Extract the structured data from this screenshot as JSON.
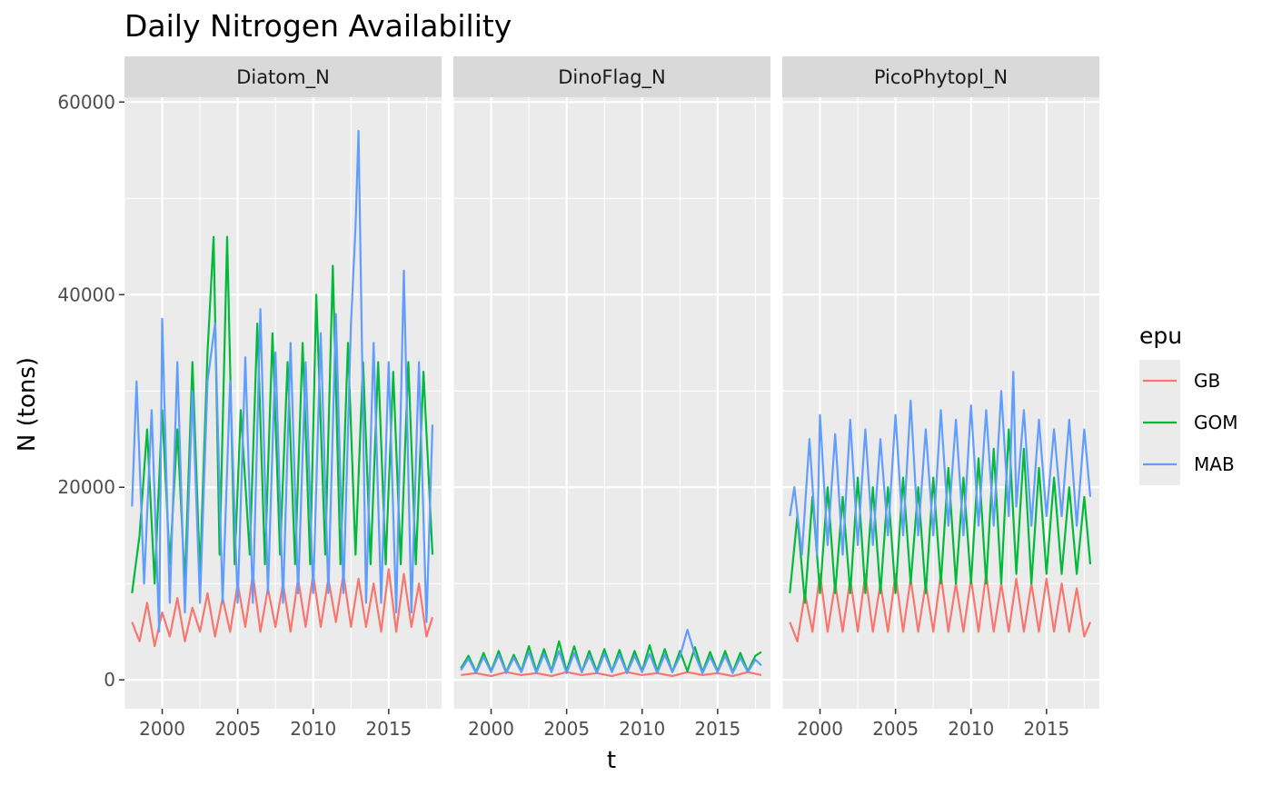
{
  "chart_data": {
    "type": "line",
    "title": "Daily Nitrogen Availability",
    "xlabel": "t",
    "ylabel": "N (tons)",
    "x_ticks": [
      2000,
      2005,
      2010,
      2015
    ],
    "y_ticks": [
      0,
      20000,
      40000,
      60000
    ],
    "xlim": [
      1997.5,
      2018.5
    ],
    "ylim": [
      -3000,
      60500
    ],
    "legend_title": "epu",
    "legend_position": "right",
    "grid": true,
    "panels": [
      {
        "name": "Diatom_N",
        "series": [
          {
            "name": "GB",
            "color": "#F8766D",
            "x": [
              1998.0,
              1998.5,
              1999.0,
              1999.5,
              2000.0,
              2000.5,
              2001.0,
              2001.5,
              2002.0,
              2002.5,
              2003.0,
              2003.5,
              2004.0,
              2004.5,
              2005.0,
              2005.5,
              2006.0,
              2006.5,
              2007.0,
              2007.5,
              2008.0,
              2008.5,
              2009.0,
              2009.5,
              2010.0,
              2010.5,
              2011.0,
              2011.5,
              2012.0,
              2012.5,
              2013.0,
              2013.5,
              2014.0,
              2014.5,
              2015.0,
              2015.5,
              2016.0,
              2016.5,
              2017.0,
              2017.5,
              2017.9
            ],
            "y": [
              6000,
              4000,
              8000,
              3500,
              7000,
              4500,
              8500,
              4000,
              7500,
              5000,
              9000,
              4500,
              8500,
              5000,
              10000,
              5500,
              11000,
              5000,
              9500,
              5500,
              10000,
              5000,
              10500,
              5500,
              11000,
              5500,
              10500,
              6000,
              11000,
              5500,
              10500,
              5500,
              10000,
              5000,
              11500,
              5000,
              11000,
              5500,
              10000,
              4500,
              6500
            ]
          },
          {
            "name": "GOM",
            "color": "#00BA38",
            "x": [
              1998.0,
              1998.5,
              1999.0,
              1999.5,
              2000.0,
              2000.5,
              2001.0,
              2001.5,
              2002.0,
              2002.5,
              2003.0,
              2003.4,
              2003.8,
              2004.3,
              2004.8,
              2005.2,
              2005.8,
              2006.3,
              2006.8,
              2007.3,
              2007.8,
              2008.3,
              2008.8,
              2009.3,
              2009.8,
              2010.2,
              2010.8,
              2011.3,
              2011.8,
              2012.3,
              2012.8,
              2013.3,
              2013.8,
              2014.3,
              2014.8,
              2015.3,
              2015.8,
              2016.3,
              2016.8,
              2017.3,
              2017.9
            ],
            "y": [
              9000,
              15000,
              26000,
              10000,
              28000,
              12000,
              26000,
              10000,
              33000,
              11000,
              34000,
              46000,
              13000,
              46000,
              12000,
              28000,
              13000,
              37000,
              12000,
              36000,
              13000,
              33000,
              12000,
              35000,
              12000,
              40000,
              13000,
              43000,
              12000,
              35000,
              13000,
              33000,
              12000,
              33000,
              12000,
              32000,
              12000,
              33000,
              12000,
              32000,
              13000
            ]
          },
          {
            "name": "MAB",
            "color": "#619CFF",
            "x": [
              1998.0,
              1998.3,
              1998.8,
              1999.3,
              1999.8,
              2000.0,
              2000.5,
              2001.0,
              2001.5,
              2002.0,
              2002.5,
              2003.0,
              2003.5,
              2004.0,
              2004.5,
              2005.0,
              2005.5,
              2006.0,
              2006.5,
              2007.0,
              2007.5,
              2008.0,
              2008.5,
              2009.0,
              2009.5,
              2010.0,
              2010.5,
              2011.0,
              2011.5,
              2012.0,
              2012.5,
              2012.8,
              2013.0,
              2013.5,
              2014.0,
              2014.5,
              2015.0,
              2015.5,
              2016.0,
              2016.5,
              2017.0,
              2017.5,
              2017.9
            ],
            "y": [
              18000,
              31000,
              10000,
              28000,
              5000,
              37500,
              8000,
              33000,
              7000,
              30000,
              8000,
              31000,
              37000,
              8000,
              31000,
              8000,
              33500,
              8000,
              38500,
              9000,
              34000,
              8000,
              35000,
              9000,
              33000,
              9000,
              36000,
              9000,
              38000,
              9000,
              37000,
              47000,
              57000,
              8000,
              35000,
              8000,
              33000,
              7000,
              42500,
              7000,
              33000,
              6000,
              26500
            ]
          }
        ]
      },
      {
        "name": "DinoFlag_N",
        "series": [
          {
            "name": "GB",
            "color": "#F8766D",
            "x": [
              1998.0,
              1999.0,
              2000.0,
              2001.0,
              2002.0,
              2003.0,
              2004.0,
              2005.0,
              2006.0,
              2007.0,
              2008.0,
              2009.0,
              2010.0,
              2011.0,
              2012.0,
              2013.0,
              2014.0,
              2015.0,
              2016.0,
              2017.0,
              2017.9
            ],
            "y": [
              500,
              700,
              400,
              800,
              500,
              700,
              400,
              800,
              500,
              700,
              400,
              800,
              500,
              700,
              400,
              800,
              500,
              700,
              400,
              800,
              500
            ]
          },
          {
            "name": "GOM",
            "color": "#00BA38",
            "x": [
              1998.0,
              1998.5,
              1999.0,
              1999.5,
              2000.0,
              2000.5,
              2001.0,
              2001.5,
              2002.0,
              2002.5,
              2003.0,
              2003.5,
              2004.0,
              2004.5,
              2005.0,
              2005.5,
              2006.0,
              2006.5,
              2007.0,
              2007.5,
              2008.0,
              2008.5,
              2009.0,
              2009.5,
              2010.0,
              2010.5,
              2011.0,
              2011.5,
              2012.0,
              2012.5,
              2013.0,
              2013.5,
              2014.0,
              2014.5,
              2015.0,
              2015.5,
              2016.0,
              2016.5,
              2017.0,
              2017.5,
              2017.9
            ],
            "y": [
              1200,
              2500,
              800,
              2800,
              900,
              3000,
              800,
              2600,
              900,
              3500,
              900,
              3200,
              900,
              4000,
              900,
              3500,
              800,
              3000,
              900,
              3200,
              900,
              3100,
              800,
              3000,
              900,
              3600,
              900,
              3200,
              800,
              3000,
              900,
              3400,
              800,
              2900,
              900,
              3000,
              800,
              2800,
              900,
              2500,
              2900
            ]
          },
          {
            "name": "MAB",
            "color": "#619CFF",
            "x": [
              1998.0,
              1998.5,
              1999.0,
              1999.5,
              2000.0,
              2000.5,
              2001.0,
              2001.5,
              2002.0,
              2002.5,
              2003.0,
              2003.5,
              2004.0,
              2004.5,
              2005.0,
              2005.5,
              2006.0,
              2006.5,
              2007.0,
              2007.5,
              2008.0,
              2008.5,
              2009.0,
              2009.5,
              2010.0,
              2010.5,
              2011.0,
              2011.5,
              2012.0,
              2012.5,
              2013.0,
              2013.5,
              2014.0,
              2014.5,
              2015.0,
              2015.5,
              2016.0,
              2016.5,
              2017.0,
              2017.5,
              2017.9
            ],
            "y": [
              1000,
              2200,
              700,
              2400,
              800,
              2600,
              700,
              2300,
              800,
              2900,
              700,
              2700,
              800,
              3000,
              700,
              2800,
              800,
              2500,
              700,
              2700,
              800,
              2600,
              700,
              2500,
              800,
              2700,
              700,
              2600,
              800,
              2400,
              5200,
              2600,
              700,
              2400,
              800,
              2500,
              700,
              2300,
              800,
              2100,
              1500
            ]
          }
        ]
      },
      {
        "name": "PicoPhytopl_N",
        "series": [
          {
            "name": "GB",
            "color": "#F8766D",
            "x": [
              1998.0,
              1998.5,
              1999.0,
              1999.5,
              2000.0,
              2000.5,
              2001.0,
              2001.5,
              2002.0,
              2002.5,
              2003.0,
              2003.5,
              2004.0,
              2004.5,
              2005.0,
              2005.5,
              2006.0,
              2006.5,
              2007.0,
              2007.5,
              2008.0,
              2008.5,
              2009.0,
              2009.5,
              2010.0,
              2010.5,
              2011.0,
              2011.5,
              2012.0,
              2012.5,
              2013.0,
              2013.5,
              2014.0,
              2014.5,
              2015.0,
              2015.5,
              2016.0,
              2016.5,
              2017.0,
              2017.5,
              2017.9
            ],
            "y": [
              6000,
              4000,
              9000,
              5000,
              11000,
              5000,
              10000,
              5000,
              10500,
              5000,
              11000,
              5000,
              10000,
              5000,
              11000,
              5000,
              10500,
              5000,
              10000,
              5000,
              11000,
              5000,
              10000,
              5000,
              10500,
              5000,
              11000,
              5000,
              10000,
              5000,
              10500,
              5000,
              10000,
              5000,
              10500,
              5000,
              10000,
              5000,
              9500,
              4500,
              6000
            ]
          },
          {
            "name": "GOM",
            "color": "#00BA38",
            "x": [
              1998.0,
              1998.5,
              1999.0,
              1999.5,
              2000.0,
              2000.5,
              2001.0,
              2001.5,
              2002.0,
              2002.5,
              2003.0,
              2003.5,
              2004.0,
              2004.5,
              2005.0,
              2005.5,
              2006.0,
              2006.5,
              2007.0,
              2007.5,
              2008.0,
              2008.5,
              2009.0,
              2009.5,
              2010.0,
              2010.5,
              2011.0,
              2011.5,
              2012.0,
              2012.5,
              2013.0,
              2013.5,
              2014.0,
              2014.5,
              2015.0,
              2015.5,
              2016.0,
              2016.5,
              2017.0,
              2017.5,
              2017.9
            ],
            "y": [
              9000,
              17000,
              8000,
              19000,
              9000,
              20000,
              9000,
              19000,
              9000,
              21000,
              9000,
              20000,
              9000,
              20000,
              9000,
              21000,
              10000,
              20000,
              9000,
              21000,
              10000,
              22000,
              10000,
              21000,
              10000,
              23000,
              10000,
              24000,
              10000,
              26000,
              11000,
              24000,
              10000,
              22000,
              11000,
              21000,
              11000,
              20000,
              11000,
              19000,
              12000
            ]
          },
          {
            "name": "MAB",
            "color": "#619CFF",
            "x": [
              1998.0,
              1998.3,
              1998.8,
              1999.3,
              1999.8,
              2000.0,
              2000.5,
              2001.0,
              2001.5,
              2002.0,
              2002.5,
              2003.0,
              2003.5,
              2004.0,
              2004.5,
              2005.0,
              2005.5,
              2006.0,
              2006.5,
              2007.0,
              2007.5,
              2008.0,
              2008.5,
              2009.0,
              2009.5,
              2010.0,
              2010.5,
              2011.0,
              2011.5,
              2012.0,
              2012.5,
              2012.8,
              2013.0,
              2013.5,
              2014.0,
              2014.5,
              2015.0,
              2015.5,
              2016.0,
              2016.5,
              2017.0,
              2017.5,
              2017.9
            ],
            "y": [
              17000,
              20000,
              13000,
              25000,
              13000,
              27500,
              14000,
              25500,
              13000,
              27000,
              14000,
              26000,
              14000,
              25000,
              15000,
              27500,
              15000,
              29000,
              15000,
              26000,
              15000,
              28000,
              16000,
              27000,
              15000,
              28500,
              16000,
              28000,
              16000,
              30000,
              17000,
              32000,
              18000,
              28000,
              16000,
              27000,
              17000,
              26000,
              17000,
              27000,
              16000,
              26000,
              19000
            ]
          }
        ]
      }
    ]
  }
}
